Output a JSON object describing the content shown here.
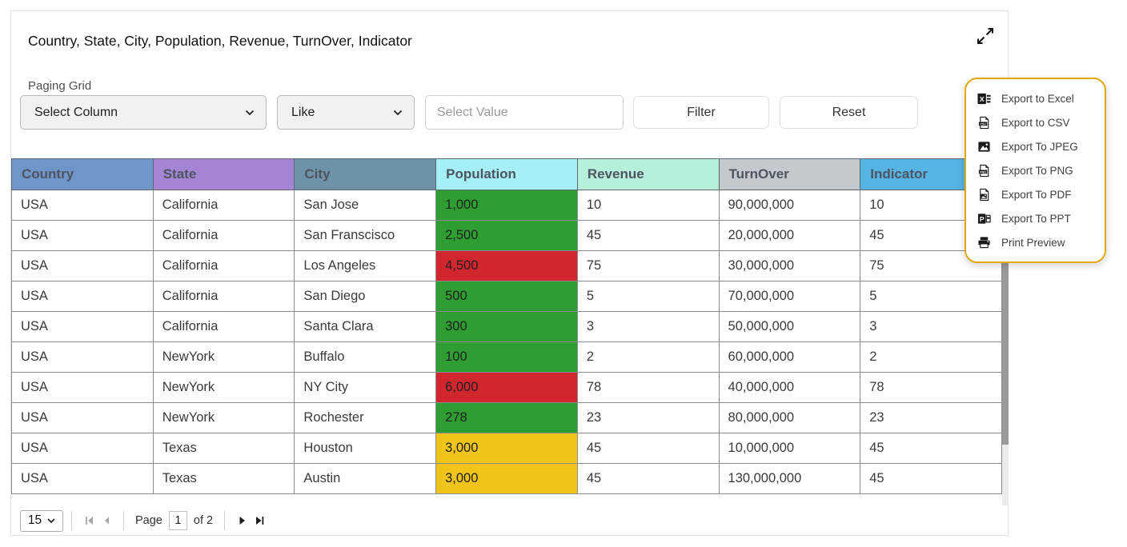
{
  "header": {
    "title": "Country, State, City, Population, Revenue, TurnOver, Indicator",
    "subtitle": "Paging Grid"
  },
  "filter_bar": {
    "column_select": {
      "value": "Select Column"
    },
    "operator_select": {
      "value": "Like"
    },
    "value_input": {
      "placeholder": "Select Value"
    },
    "filter_button": "Filter",
    "reset_button": "Reset"
  },
  "export_menu": {
    "border_color": "#e2a90a",
    "items": [
      {
        "label": "Export to Excel",
        "icon": "excel-icon"
      },
      {
        "label": "Export to CSV",
        "icon": "csv-icon"
      },
      {
        "label": "Export To JPEG",
        "icon": "jpeg-icon"
      },
      {
        "label": "Export To PNG",
        "icon": "png-icon"
      },
      {
        "label": "Export To PDF",
        "icon": "pdf-icon"
      },
      {
        "label": "Export To PPT",
        "icon": "ppt-icon"
      },
      {
        "label": "Print Preview",
        "icon": "printer-icon"
      }
    ]
  },
  "table": {
    "columns": [
      {
        "label": "Country",
        "color": "#6e96c9"
      },
      {
        "label": "State",
        "color": "#a484d4"
      },
      {
        "label": "City",
        "color": "#6e93a9"
      },
      {
        "label": "Population",
        "color": "#a5f0f7"
      },
      {
        "label": "Revenue",
        "color": "#b6f0da"
      },
      {
        "label": "TurnOver",
        "color": "#c3c9cc"
      },
      {
        "label": "Indicator",
        "color": "#56b4e5"
      }
    ],
    "status_colors": {
      "green": "#2f9e32",
      "red": "#d2262f",
      "yellow": "#f0c419"
    },
    "rows": [
      {
        "country": "USA",
        "state": "California",
        "city": "San Jose",
        "population": "1,000",
        "population_color": "green",
        "revenue": "10",
        "turnover": "90,000,000",
        "indicator": "10"
      },
      {
        "country": "USA",
        "state": "California",
        "city": "San Franscisco",
        "population": "2,500",
        "population_color": "green",
        "revenue": "45",
        "turnover": "20,000,000",
        "indicator": "45"
      },
      {
        "country": "USA",
        "state": "California",
        "city": "Los Angeles",
        "population": "4,500",
        "population_color": "red",
        "revenue": "75",
        "turnover": "30,000,000",
        "indicator": "75"
      },
      {
        "country": "USA",
        "state": "California",
        "city": "San Diego",
        "population": "500",
        "population_color": "green",
        "revenue": "5",
        "turnover": "70,000,000",
        "indicator": "5"
      },
      {
        "country": "USA",
        "state": "California",
        "city": "Santa Clara",
        "population": "300",
        "population_color": "green",
        "revenue": "3",
        "turnover": "50,000,000",
        "indicator": "3"
      },
      {
        "country": "USA",
        "state": "NewYork",
        "city": "Buffalo",
        "population": "100",
        "population_color": "green",
        "revenue": "2",
        "turnover": "60,000,000",
        "indicator": "2"
      },
      {
        "country": "USA",
        "state": "NewYork",
        "city": "NY City",
        "population": "6,000",
        "population_color": "red",
        "revenue": "78",
        "turnover": "40,000,000",
        "indicator": "78"
      },
      {
        "country": "USA",
        "state": "NewYork",
        "city": "Rochester",
        "population": "278",
        "population_color": "green",
        "revenue": "23",
        "turnover": "80,000,000",
        "indicator": "23"
      },
      {
        "country": "USA",
        "state": "Texas",
        "city": "Houston",
        "population": "3,000",
        "population_color": "yellow",
        "revenue": "45",
        "turnover": "10,000,000",
        "indicator": "45"
      },
      {
        "country": "USA",
        "state": "Texas",
        "city": "Austin",
        "population": "3,000",
        "population_color": "yellow",
        "revenue": "45",
        "turnover": "130,000,000",
        "indicator": "45"
      }
    ]
  },
  "pagination": {
    "page_size": "15",
    "page_label": "Page",
    "current_page": "1",
    "of_label": "of 2"
  }
}
